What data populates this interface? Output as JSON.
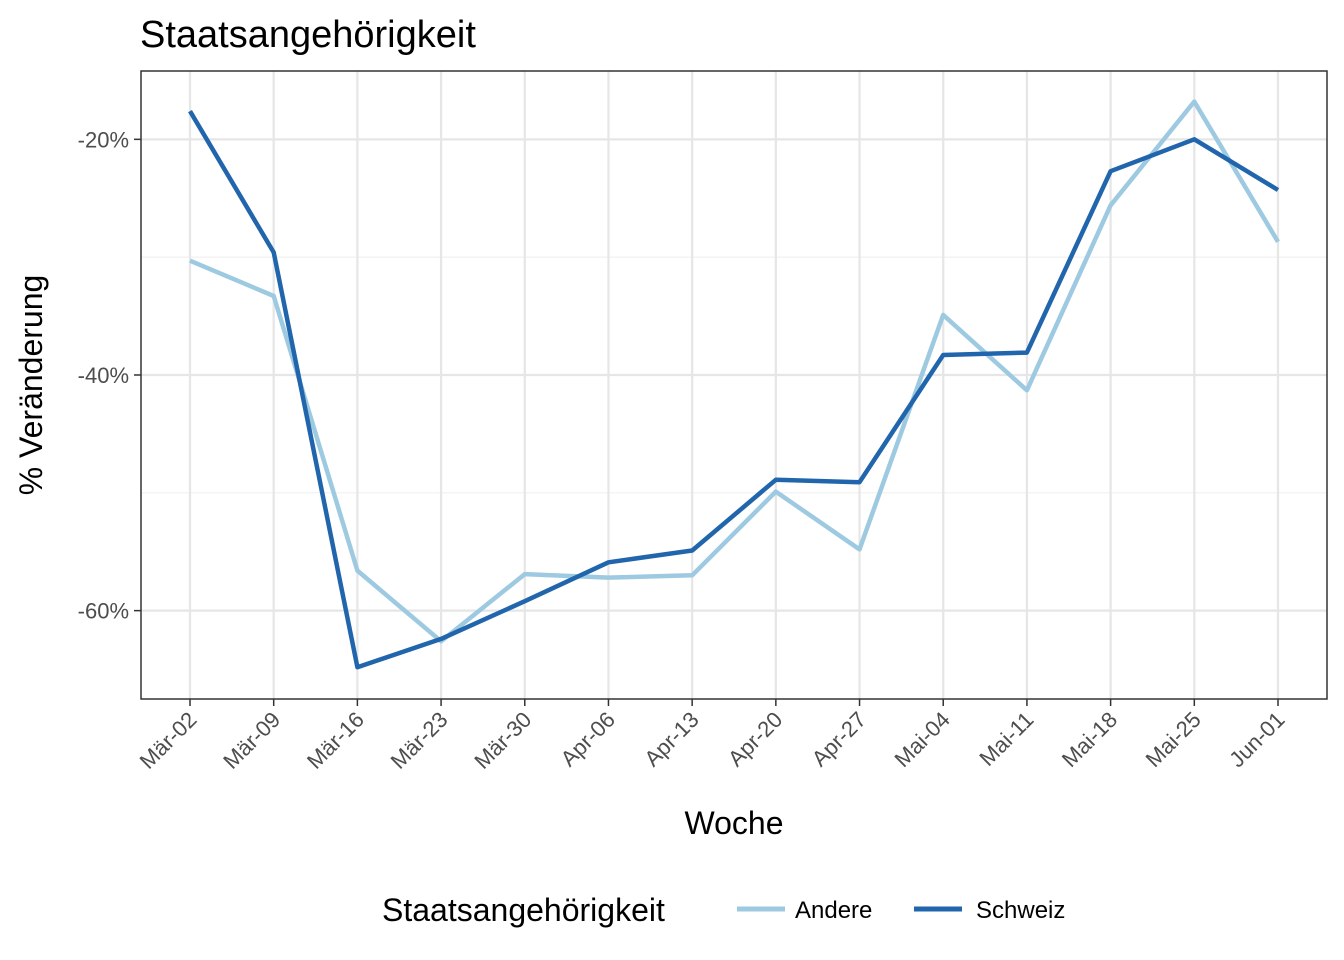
{
  "chart_data": {
    "type": "line",
    "title": "Staatsangehörigkeit",
    "xlabel": "Woche",
    "ylabel": "% Veränderung",
    "categories": [
      "Mär-02",
      "Mär-09",
      "Mär-16",
      "Mär-23",
      "Mär-30",
      "Apr-06",
      "Apr-13",
      "Apr-20",
      "Apr-27",
      "Mai-04",
      "Mai-11",
      "Mai-18",
      "Mai-25",
      "Jun-01"
    ],
    "y_ticks": [
      -20,
      -40,
      -60
    ],
    "y_tick_labels": [
      "-20%",
      "-40%",
      "-60%"
    ],
    "ylim": [
      -67.5,
      -14.2
    ],
    "grid": true,
    "legend": {
      "title": "Staatsangehörigkeit",
      "position": "bottom"
    },
    "series": [
      {
        "name": "Andere",
        "color": "#9ecae1",
        "values": [
          -30.3,
          -33.3,
          -56.6,
          -62.6,
          -56.9,
          -57.2,
          -57.0,
          -49.9,
          -54.8,
          -34.9,
          -41.3,
          -25.6,
          -16.8,
          -28.7
        ]
      },
      {
        "name": "Schweiz",
        "color": "#2166ac",
        "values": [
          -17.6,
          -29.6,
          -64.8,
          -62.4,
          -59.2,
          -55.9,
          -54.9,
          -48.9,
          -49.1,
          -38.3,
          -38.1,
          -22.7,
          -20.0,
          -24.3
        ]
      }
    ]
  }
}
